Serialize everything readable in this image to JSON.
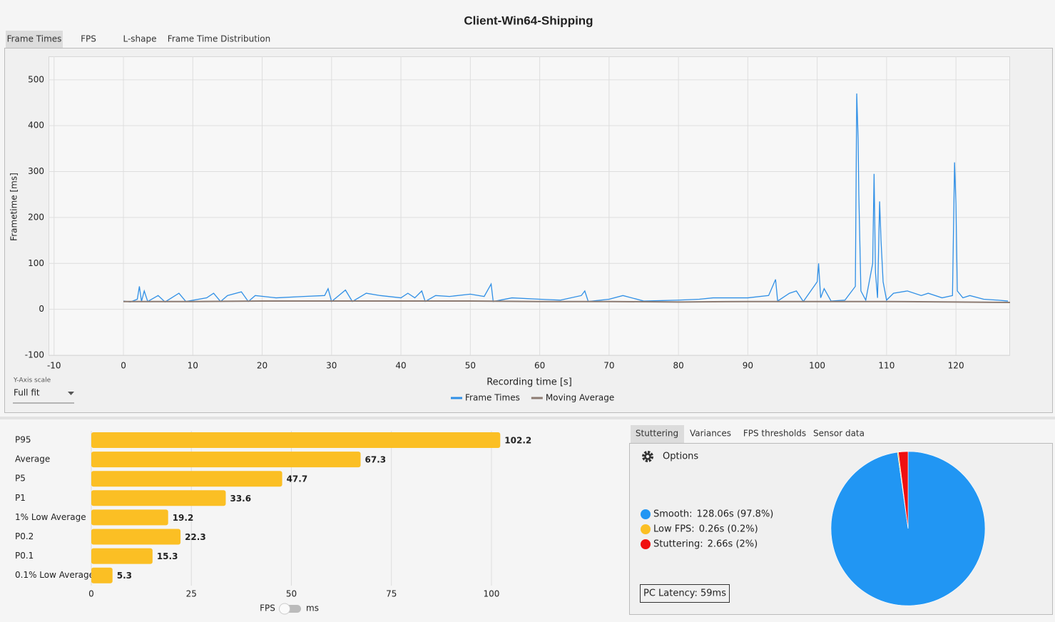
{
  "header": {
    "title": "Client-Win64-Shipping"
  },
  "tabs": [
    "Frame Times",
    "FPS",
    "L-shape",
    "Frame Time Distribution"
  ],
  "y_axis_scale": {
    "label": "Y-Axis scale",
    "value": "Full fit"
  },
  "unit_toggle": {
    "left": "FPS",
    "right": "ms"
  },
  "stutter_tabs": [
    "Stuttering",
    "Variances",
    "FPS thresholds",
    "Sensor data"
  ],
  "options_label": "Options",
  "pc_latency": "PC Latency: 59ms",
  "chart_data": [
    {
      "type": "line",
      "x_label": "Recording time [s]",
      "y_label": "Frametime [ms]",
      "xlim": [
        -10.8,
        127.8
      ],
      "ylim": [
        -100,
        551
      ],
      "xticks": [
        -10,
        0,
        10,
        20,
        30,
        40,
        50,
        60,
        70,
        80,
        90,
        100,
        110,
        120
      ],
      "yticks": [
        -100,
        0,
        100,
        200,
        300,
        400,
        500
      ],
      "grid": true,
      "series": [
        {
          "name": "Frame Times",
          "color": "#2f8fe6",
          "x": [
            0,
            1,
            2,
            2.3,
            2.6,
            3,
            3.5,
            5,
            6,
            8,
            9,
            12,
            13,
            14,
            15,
            17,
            18,
            19,
            22,
            26,
            29,
            29.5,
            30,
            32,
            33,
            35,
            37,
            40,
            41,
            42,
            43,
            43.5,
            45,
            47,
            50,
            52,
            53,
            53.3,
            56,
            60,
            63,
            66,
            66.5,
            67,
            70,
            72,
            75,
            80,
            83,
            85,
            88,
            90,
            93,
            94,
            94.3,
            96,
            97,
            98,
            100,
            100.2,
            100.5,
            101,
            102,
            104,
            105.5,
            105.7,
            105.9,
            106,
            106.3,
            107,
            108,
            108.2,
            108.4,
            108.7,
            109,
            109.2,
            109.5,
            110,
            111,
            113,
            115,
            116,
            118,
            119.5,
            119.8,
            120,
            120.2,
            121,
            122,
            124,
            126,
            127.5
          ],
          "values": [
            18,
            16,
            22,
            50,
            17,
            40,
            17,
            30,
            16,
            35,
            17,
            25,
            35,
            17,
            30,
            38,
            17,
            30,
            25,
            28,
            30,
            45,
            17,
            42,
            17,
            35,
            30,
            25,
            35,
            25,
            40,
            17,
            30,
            28,
            33,
            28,
            55,
            17,
            25,
            22,
            20,
            30,
            40,
            17,
            22,
            30,
            18,
            20,
            22,
            25,
            25,
            25,
            30,
            65,
            18,
            35,
            40,
            17,
            60,
            100,
            25,
            45,
            18,
            20,
            50,
            470,
            370,
            250,
            40,
            20,
            100,
            295,
            80,
            25,
            235,
            150,
            60,
            20,
            35,
            40,
            30,
            35,
            25,
            30,
            320,
            230,
            40,
            25,
            30,
            22,
            20,
            18
          ]
        },
        {
          "name": "Moving Average",
          "color": "#8d7b72",
          "x": [
            0,
            10,
            20,
            30,
            40,
            50,
            60,
            70,
            80,
            90,
            100,
            110,
            120,
            127.8
          ],
          "values": [
            17,
            17,
            18,
            18,
            18,
            18,
            17,
            17,
            16,
            17,
            17,
            17,
            16,
            15
          ]
        }
      ]
    },
    {
      "type": "hbar",
      "color": "#fbbf24",
      "categories": [
        "P95",
        "Average",
        "P5",
        "P1",
        "1% Low Average",
        "P0.2",
        "P0.1",
        "0.1% Low Average"
      ],
      "values": [
        102.2,
        67.3,
        47.7,
        33.6,
        19.2,
        22.3,
        15.3,
        5.3
      ],
      "xlim": [
        0,
        105
      ],
      "xticks": [
        0,
        25,
        50,
        75,
        100
      ],
      "grid": true
    },
    {
      "type": "pie",
      "categories": [
        "Smooth:",
        "Low FPS:",
        "Stuttering:"
      ],
      "values": [
        97.8,
        0.2,
        2
      ],
      "value_labels": [
        "128.06s (97.8%)",
        "0.26s (0.2%)",
        "2.66s (2%)"
      ],
      "colors": [
        "#2196f3",
        "#fbbf24",
        "#f01010"
      ]
    }
  ]
}
